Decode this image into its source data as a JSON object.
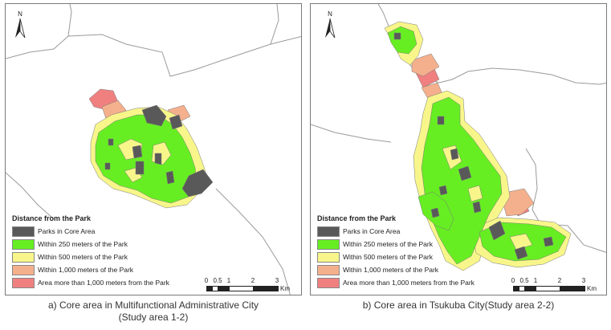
{
  "colors": {
    "parks": "#595959",
    "within_250": "#66ee22",
    "within_500": "#f8f68a",
    "within_1000": "#f4b08d",
    "more_than_1000": "#f08080"
  },
  "north_label": "N",
  "legend": {
    "title": "Distance from the Park",
    "items": [
      {
        "label": "Parks in Core Area",
        "color": "#595959"
      },
      {
        "label": "Within 250 meters of the Park",
        "color": "#66ee22"
      },
      {
        "label": "Within 500 meters of the Park",
        "color": "#f8f68a"
      },
      {
        "label": "Within 1,000 meters of the Park",
        "color": "#f4b08d"
      },
      {
        "label": "Area more than 1,000 meters from the Park",
        "color": "#f08080"
      }
    ]
  },
  "scalebar": {
    "ticks": [
      "0",
      "0.5",
      "1",
      "2",
      "3"
    ],
    "unit": "Km"
  },
  "captions": {
    "a_line1": "a) Core area in Multifunctional Administrative City",
    "a_line2": "(Study area 1-2)",
    "b": "b) Core area in Tsukuba City(Study area 2-2)"
  }
}
